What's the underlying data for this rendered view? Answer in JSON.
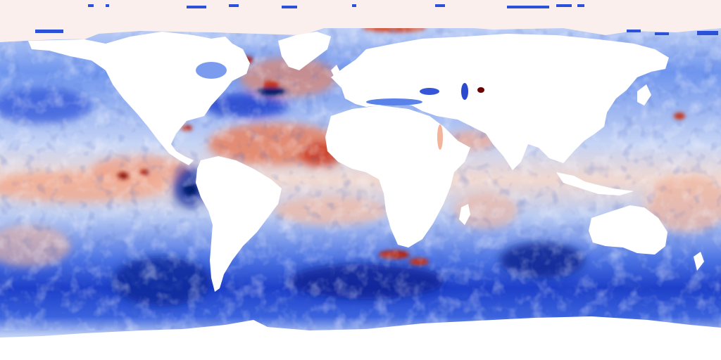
{
  "map": {
    "projection": "equirectangular",
    "land_color": "#ffffff",
    "palette": [
      "#00125a",
      "#1d3fd9",
      "#5d84ea",
      "#a9c0f2",
      "#f7f3f2",
      "#f3b49c",
      "#e56a45",
      "#b3200c",
      "#6a0000"
    ],
    "polar_fill": "#fbefee",
    "ocean_base": "#6f95ee"
  }
}
